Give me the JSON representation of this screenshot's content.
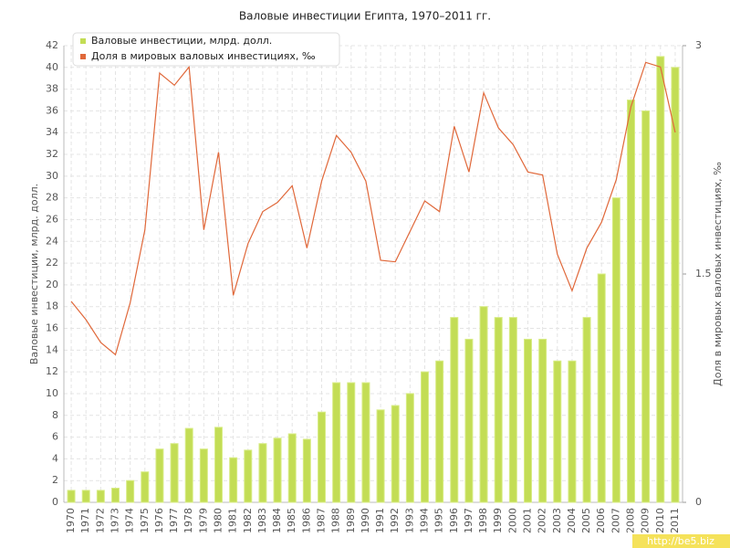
{
  "chart_data": {
    "type": "combo",
    "title": "Валовые инвестиции Египта, 1970–2011 гг.",
    "y_label": "Валовые инвестиции, млрд. долл.",
    "y2_label": "Доля в мировых валовых инвестициях, ‰",
    "categories": [
      "1970",
      "1971",
      "1972",
      "1973",
      "1974",
      "1975",
      "1976",
      "1977",
      "1978",
      "1979",
      "1980",
      "1981",
      "1982",
      "1983",
      "1984",
      "1985",
      "1986",
      "1987",
      "1988",
      "1989",
      "1990",
      "1991",
      "1992",
      "1993",
      "1994",
      "1995",
      "1996",
      "1997",
      "1998",
      "1999",
      "2000",
      "2001",
      "2002",
      "2003",
      "2004",
      "2005",
      "2006",
      "2007",
      "2008",
      "2009",
      "2010",
      "2011"
    ],
    "series": [
      {
        "name": "Валовые инвестиции, млрд. долл.",
        "type": "bar",
        "color": "#c3dd55",
        "values": [
          1.1,
          1.1,
          1.1,
          1.3,
          2.0,
          2.8,
          4.9,
          5.4,
          6.8,
          4.9,
          6.9,
          4.1,
          4.8,
          5.4,
          5.9,
          6.3,
          5.8,
          8.3,
          11,
          11,
          11,
          8.5,
          8.9,
          10,
          12,
          13,
          17,
          15,
          18,
          17,
          17,
          15,
          15,
          13,
          13,
          17,
          21,
          28,
          37,
          36,
          41,
          40
        ]
      },
      {
        "name": "Доля в мировых валовых инвестициях, ‰",
        "type": "line",
        "axis": "y2",
        "color": "#e0683a",
        "values": [
          1.32,
          1.2,
          1.05,
          0.97,
          1.31,
          1.79,
          2.82,
          2.74,
          2.86,
          1.79,
          2.3,
          1.36,
          1.7,
          1.91,
          1.97,
          2.08,
          1.67,
          2.11,
          2.41,
          2.3,
          2.11,
          1.59,
          1.58,
          1.78,
          1.98,
          1.91,
          2.47,
          2.17,
          2.69,
          2.46,
          2.35,
          2.17,
          2.15,
          1.63,
          1.39,
          1.67,
          1.84,
          2.12,
          2.6,
          2.89,
          2.86,
          2.43
        ]
      }
    ],
    "ylim": [
      0,
      42
    ],
    "yticks": [
      0,
      2,
      4,
      6,
      8,
      10,
      12,
      14,
      16,
      18,
      20,
      22,
      24,
      26,
      28,
      30,
      32,
      34,
      36,
      38,
      40,
      42
    ],
    "y2lim": [
      0,
      3
    ],
    "y2ticks": [
      0,
      1.5,
      3
    ],
    "grid": true,
    "legend": "top-left"
  },
  "watermark": "http://be5.biz"
}
